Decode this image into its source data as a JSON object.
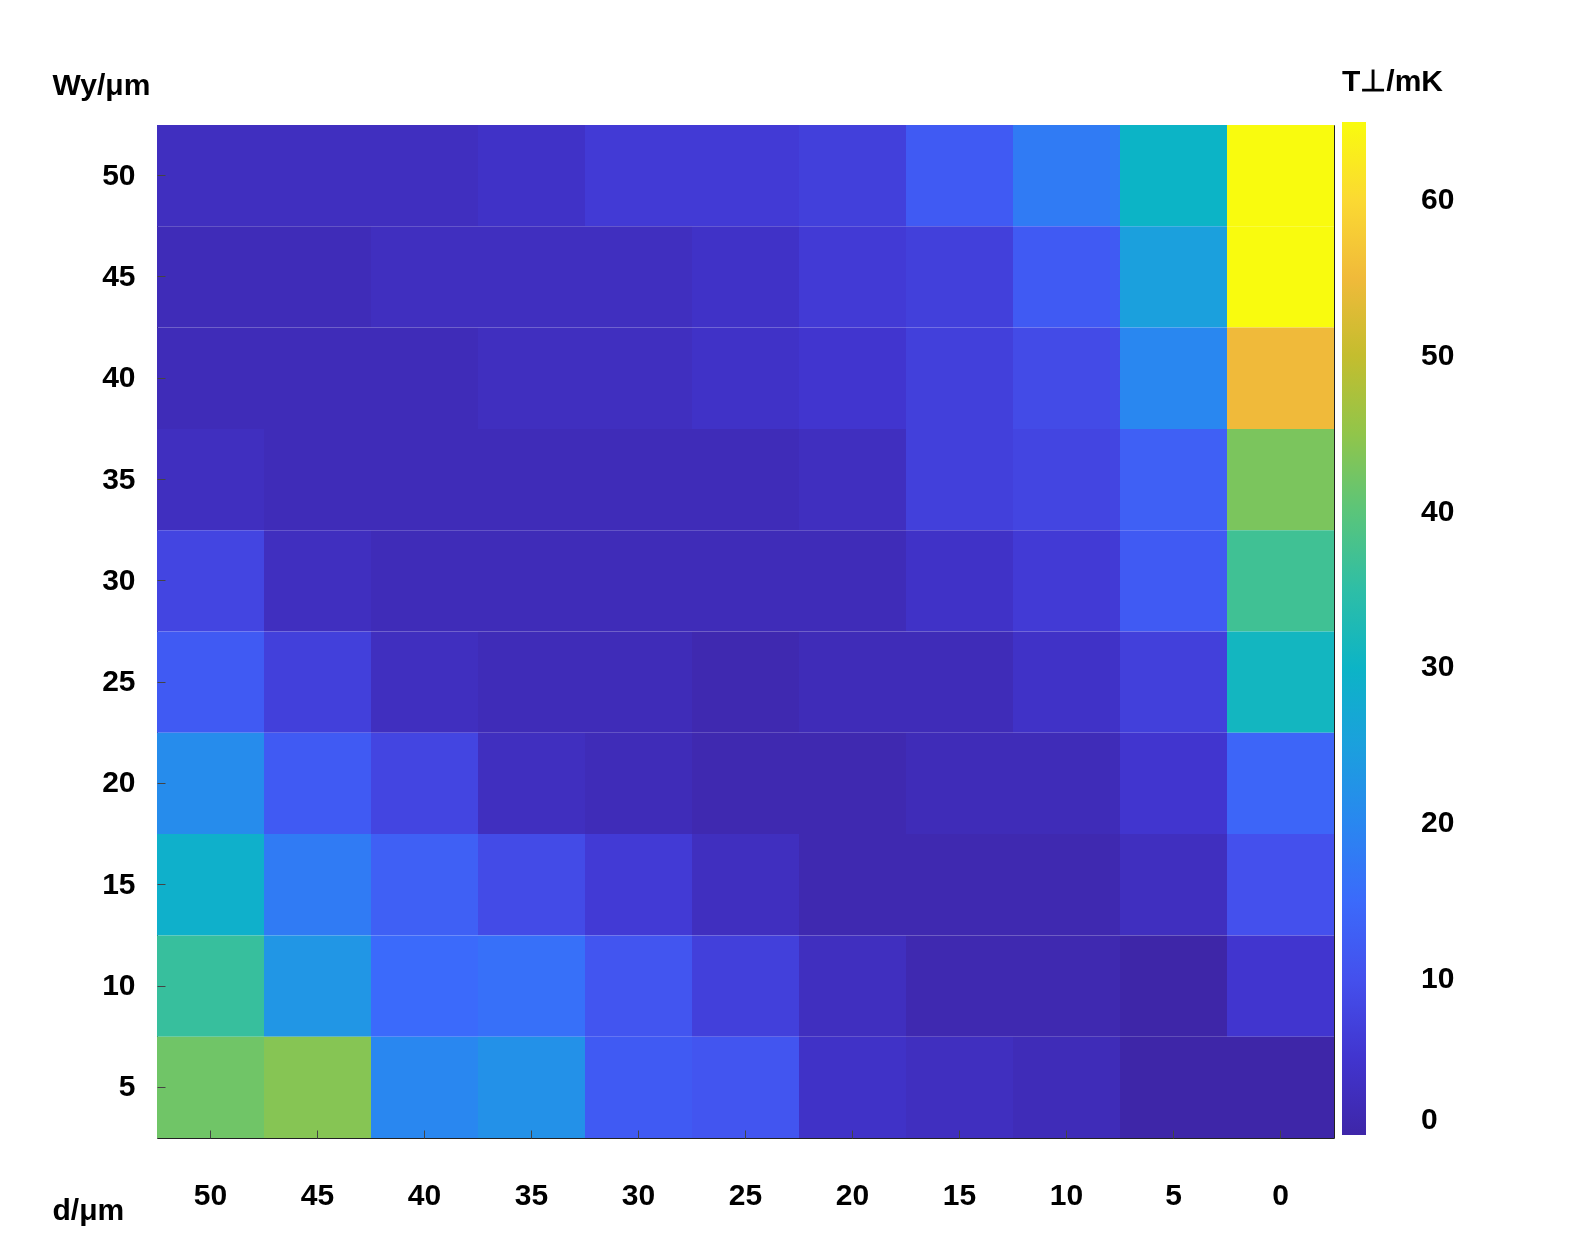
{
  "chart_data": {
    "type": "heatmap",
    "xlabel": "d/μm",
    "ylabel": "Wy/μm",
    "clabel": "T⊥/mK",
    "categories": [
      "50",
      "45",
      "40",
      "35",
      "30",
      "25",
      "20",
      "15",
      "10",
      "5",
      "0"
    ],
    "y_categories": [
      "50",
      "45",
      "40",
      "35",
      "30",
      "25",
      "20",
      "15",
      "10",
      "5"
    ],
    "cells": [
      [
        3,
        3,
        3,
        4,
        6,
        6,
        7,
        12,
        18,
        30,
        65
      ],
      [
        2,
        2,
        3,
        3,
        3,
        4,
        6,
        7,
        12,
        25,
        65
      ],
      [
        2,
        2,
        2,
        3,
        3,
        4,
        5,
        7,
        9,
        20,
        55
      ],
      [
        3,
        2,
        2,
        2,
        2,
        2,
        3,
        7,
        8,
        13,
        43
      ],
      [
        8,
        3,
        2,
        2,
        2,
        2,
        2,
        4,
        6,
        12,
        37
      ],
      [
        12,
        7,
        3,
        2,
        2,
        1,
        2,
        2,
        4,
        7,
        31
      ],
      [
        21,
        12,
        8,
        3,
        2,
        1,
        1,
        2,
        2,
        5,
        14
      ],
      [
        29,
        18,
        13,
        9,
        6,
        3,
        1,
        1,
        1,
        3,
        10
      ],
      [
        36,
        23,
        15,
        16,
        11,
        7,
        3,
        1,
        1,
        0,
        5
      ],
      [
        42,
        44,
        20,
        22,
        12,
        11,
        4,
        3,
        2,
        0,
        0
      ]
    ],
    "clim": [
      0,
      65
    ],
    "cticks": [
      0,
      10,
      20,
      30,
      40,
      50,
      60
    ]
  }
}
